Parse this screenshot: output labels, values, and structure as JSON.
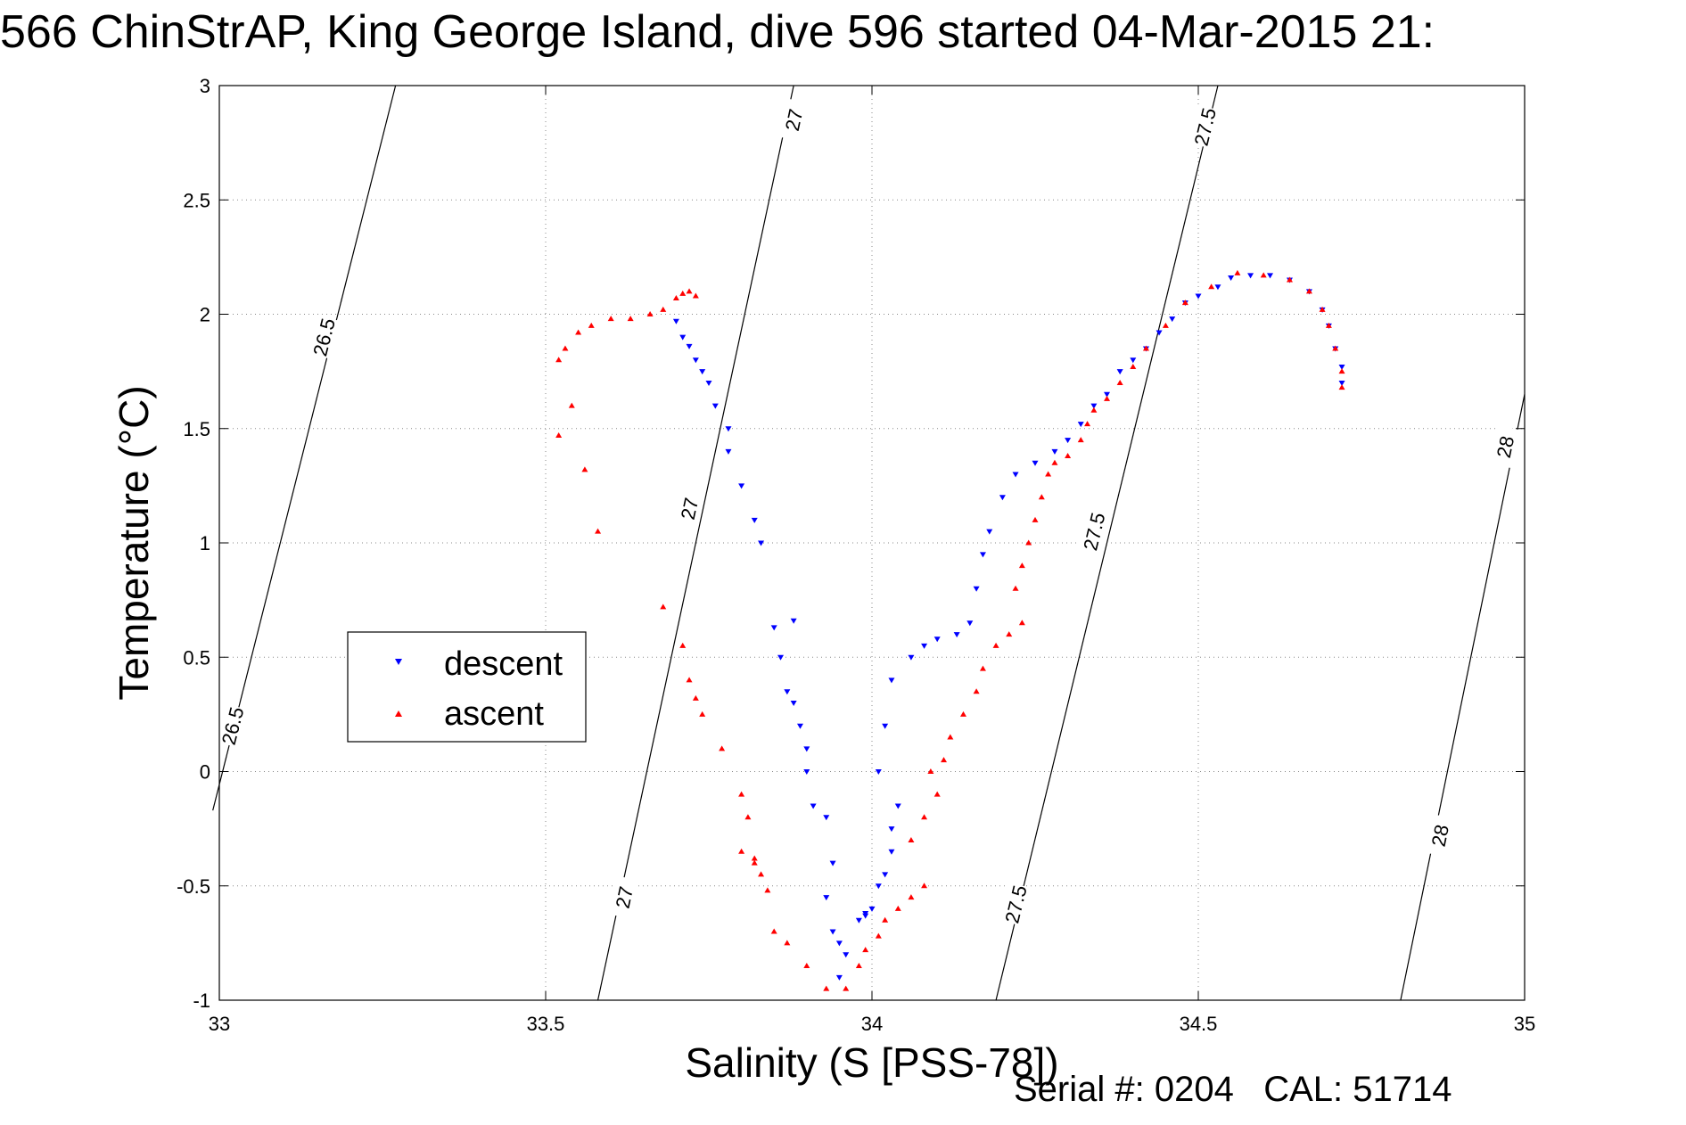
{
  "title": "566 ChinStrAP, King George Island, dive 596 started 04-Mar-2015 21:",
  "footer": {
    "serial_label": "Serial #:",
    "serial": "0204",
    "cal_label": "CAL:",
    "cal": "51714"
  },
  "chart_data": {
    "type": "scatter",
    "title": "566 ChinStrAP, King George Island, dive 596 started 04-Mar-2015 21:",
    "xlabel": "Salinity (S [PSS-78])",
    "ylabel": "Temperature (°C)",
    "xlim": [
      33,
      35
    ],
    "ylim": [
      -1,
      3
    ],
    "xticks": [
      "33",
      "33.5",
      "34",
      "34.5",
      "35"
    ],
    "yticks": [
      "-1",
      "-0.5",
      "0",
      "0.5",
      "1",
      "1.5",
      "2",
      "2.5",
      "3"
    ],
    "grid": true,
    "legend_position": "middle-left",
    "series": [
      {
        "name": "descent",
        "marker": "triangle-down",
        "color": "#0000ff",
        "points": [
          [
            33.7,
            1.97
          ],
          [
            33.71,
            1.9
          ],
          [
            33.72,
            1.86
          ],
          [
            33.73,
            1.8
          ],
          [
            33.74,
            1.75
          ],
          [
            33.75,
            1.7
          ],
          [
            33.76,
            1.6
          ],
          [
            33.78,
            1.5
          ],
          [
            33.78,
            1.4
          ],
          [
            33.8,
            1.25
          ],
          [
            33.82,
            1.1
          ],
          [
            33.83,
            1.0
          ],
          [
            33.85,
            0.63
          ],
          [
            33.88,
            0.66
          ],
          [
            33.86,
            0.5
          ],
          [
            33.87,
            0.35
          ],
          [
            33.88,
            0.3
          ],
          [
            33.89,
            0.2
          ],
          [
            33.9,
            0.1
          ],
          [
            33.9,
            0.0
          ],
          [
            33.91,
            -0.15
          ],
          [
            33.93,
            -0.2
          ],
          [
            33.94,
            -0.4
          ],
          [
            33.93,
            -0.55
          ],
          [
            33.94,
            -0.7
          ],
          [
            33.95,
            -0.75
          ],
          [
            33.96,
            -0.8
          ],
          [
            33.95,
            -0.9
          ],
          [
            33.98,
            -0.65
          ],
          [
            33.99,
            -0.62
          ],
          [
            33.99,
            -0.63
          ],
          [
            34.0,
            -0.6
          ],
          [
            34.01,
            -0.5
          ],
          [
            34.02,
            -0.45
          ],
          [
            34.03,
            -0.35
          ],
          [
            34.03,
            -0.25
          ],
          [
            34.04,
            -0.15
          ],
          [
            34.01,
            0.0
          ],
          [
            34.02,
            0.2
          ],
          [
            34.03,
            0.4
          ],
          [
            34.06,
            0.5
          ],
          [
            34.08,
            0.55
          ],
          [
            34.1,
            0.58
          ],
          [
            34.13,
            0.6
          ],
          [
            34.15,
            0.65
          ],
          [
            34.16,
            0.8
          ],
          [
            34.17,
            0.95
          ],
          [
            34.18,
            1.05
          ],
          [
            34.2,
            1.2
          ],
          [
            34.22,
            1.3
          ],
          [
            34.25,
            1.35
          ],
          [
            34.28,
            1.4
          ],
          [
            34.3,
            1.45
          ],
          [
            34.32,
            1.52
          ],
          [
            34.34,
            1.6
          ],
          [
            34.36,
            1.65
          ],
          [
            34.38,
            1.75
          ],
          [
            34.4,
            1.8
          ],
          [
            34.42,
            1.85
          ],
          [
            34.44,
            1.92
          ],
          [
            34.46,
            1.98
          ],
          [
            34.48,
            2.05
          ],
          [
            34.5,
            2.08
          ],
          [
            34.53,
            2.12
          ],
          [
            34.55,
            2.16
          ],
          [
            34.58,
            2.17
          ],
          [
            34.61,
            2.17
          ],
          [
            34.64,
            2.15
          ],
          [
            34.67,
            2.1
          ],
          [
            34.69,
            2.02
          ],
          [
            34.7,
            1.95
          ],
          [
            34.71,
            1.85
          ],
          [
            34.72,
            1.77
          ],
          [
            34.72,
            1.7
          ]
        ]
      },
      {
        "name": "ascent",
        "marker": "triangle-up",
        "color": "#ff0000",
        "points": [
          [
            33.73,
            2.08
          ],
          [
            33.72,
            2.1
          ],
          [
            33.71,
            2.09
          ],
          [
            33.7,
            2.07
          ],
          [
            33.68,
            2.02
          ],
          [
            33.66,
            2.0
          ],
          [
            33.63,
            1.98
          ],
          [
            33.6,
            1.98
          ],
          [
            33.57,
            1.95
          ],
          [
            33.55,
            1.92
          ],
          [
            33.53,
            1.85
          ],
          [
            33.52,
            1.8
          ],
          [
            33.54,
            1.6
          ],
          [
            33.52,
            1.47
          ],
          [
            33.56,
            1.32
          ],
          [
            33.58,
            1.05
          ],
          [
            33.68,
            0.72
          ],
          [
            33.71,
            0.55
          ],
          [
            33.72,
            0.4
          ],
          [
            33.73,
            0.32
          ],
          [
            33.74,
            0.25
          ],
          [
            33.77,
            0.1
          ],
          [
            33.8,
            -0.1
          ],
          [
            33.81,
            -0.2
          ],
          [
            33.8,
            -0.35
          ],
          [
            33.82,
            -0.4
          ],
          [
            33.83,
            -0.45
          ],
          [
            33.84,
            -0.52
          ],
          [
            33.82,
            -0.38
          ],
          [
            33.85,
            -0.7
          ],
          [
            33.87,
            -0.75
          ],
          [
            33.9,
            -0.85
          ],
          [
            33.93,
            -0.95
          ],
          [
            33.96,
            -0.95
          ],
          [
            33.98,
            -0.85
          ],
          [
            33.99,
            -0.78
          ],
          [
            34.01,
            -0.72
          ],
          [
            34.02,
            -0.65
          ],
          [
            34.04,
            -0.6
          ],
          [
            34.06,
            -0.55
          ],
          [
            34.08,
            -0.5
          ],
          [
            34.06,
            -0.3
          ],
          [
            34.08,
            -0.2
          ],
          [
            34.1,
            -0.1
          ],
          [
            34.09,
            0.0
          ],
          [
            34.11,
            0.05
          ],
          [
            34.12,
            0.15
          ],
          [
            34.14,
            0.25
          ],
          [
            34.16,
            0.35
          ],
          [
            34.17,
            0.45
          ],
          [
            34.19,
            0.55
          ],
          [
            34.21,
            0.6
          ],
          [
            34.23,
            0.65
          ],
          [
            34.22,
            0.8
          ],
          [
            34.23,
            0.9
          ],
          [
            34.24,
            1.0
          ],
          [
            34.25,
            1.1
          ],
          [
            34.26,
            1.2
          ],
          [
            34.27,
            1.3
          ],
          [
            34.28,
            1.35
          ],
          [
            34.3,
            1.38
          ],
          [
            34.32,
            1.45
          ],
          [
            34.33,
            1.52
          ],
          [
            34.34,
            1.58
          ],
          [
            34.36,
            1.63
          ],
          [
            34.38,
            1.7
          ],
          [
            34.4,
            1.77
          ],
          [
            34.42,
            1.85
          ],
          [
            34.45,
            1.95
          ],
          [
            34.48,
            2.05
          ],
          [
            34.52,
            2.12
          ],
          [
            34.56,
            2.18
          ],
          [
            34.6,
            2.17
          ],
          [
            34.64,
            2.15
          ],
          [
            34.67,
            2.1
          ],
          [
            34.69,
            2.02
          ],
          [
            34.7,
            1.95
          ],
          [
            34.71,
            1.85
          ],
          [
            34.72,
            1.75
          ],
          [
            34.72,
            1.68
          ]
        ]
      }
    ],
    "contours": [
      {
        "level": "26.5",
        "labels": [
          "26.5",
          "26.5"
        ]
      },
      {
        "level": "27",
        "labels": [
          "27",
          "27",
          "27"
        ]
      },
      {
        "level": "27.5",
        "labels": [
          "27.5",
          "27.5",
          "27.5"
        ]
      },
      {
        "level": "28",
        "labels": [
          "28",
          "28"
        ]
      }
    ]
  }
}
